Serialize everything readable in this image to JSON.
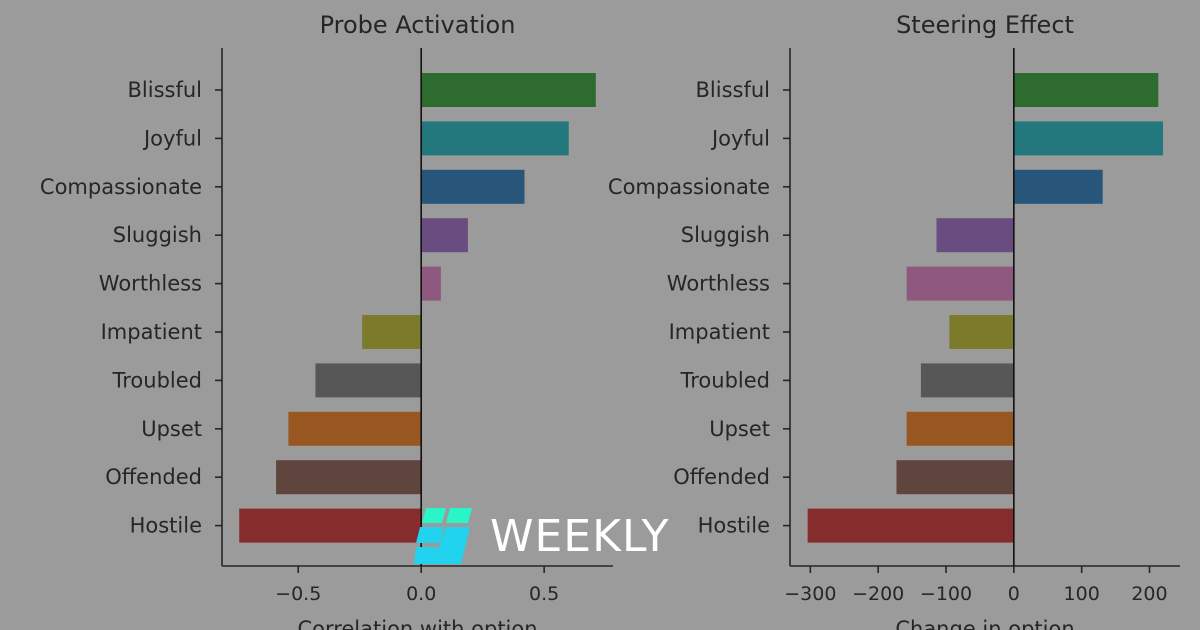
{
  "chart_data": [
    {
      "type": "bar",
      "orientation": "horizontal",
      "title": "Probe Activation",
      "xlabel": "Correlation with option",
      "categories": [
        "Blissful",
        "Joyful",
        "Compassionate",
        "Sluggish",
        "Worthless",
        "Impatient",
        "Troubled",
        "Upset",
        "Offended",
        "Hostile"
      ],
      "values": [
        0.71,
        0.6,
        0.42,
        0.19,
        0.08,
        -0.24,
        -0.43,
        -0.54,
        -0.59,
        -0.74
      ],
      "xlim": [
        -0.81,
        0.78
      ],
      "xticks": [
        -0.5,
        0.0,
        0.5
      ],
      "xtick_labels": [
        "−0.5",
        "0.0",
        "0.5"
      ],
      "grid": false
    },
    {
      "type": "bar",
      "orientation": "horizontal",
      "title": "Steering Effect",
      "xlabel": "Change in option",
      "categories": [
        "Blissful",
        "Joyful",
        "Compassionate",
        "Sluggish",
        "Worthless",
        "Impatient",
        "Troubled",
        "Upset",
        "Offended",
        "Hostile"
      ],
      "values": [
        213,
        220,
        131,
        -114,
        -158,
        -95,
        -137,
        -158,
        -173,
        -304
      ],
      "xlim": [
        -330,
        245
      ],
      "xticks": [
        -300,
        -200,
        -100,
        0,
        100,
        200
      ],
      "xtick_labels": [
        "−300",
        "−200",
        "−100",
        "0",
        "100",
        "200"
      ],
      "grid": false
    }
  ],
  "bar_colors": [
    "#2e6b2e",
    "#22787c",
    "#27567a",
    "#694c80",
    "#8f587f",
    "#7b7b2b",
    "#575757",
    "#985721",
    "#60443e",
    "#872c2c"
  ],
  "watermark": {
    "text": "WEEKLY",
    "colors": [
      "#2af5c8",
      "#22d3f0"
    ]
  }
}
